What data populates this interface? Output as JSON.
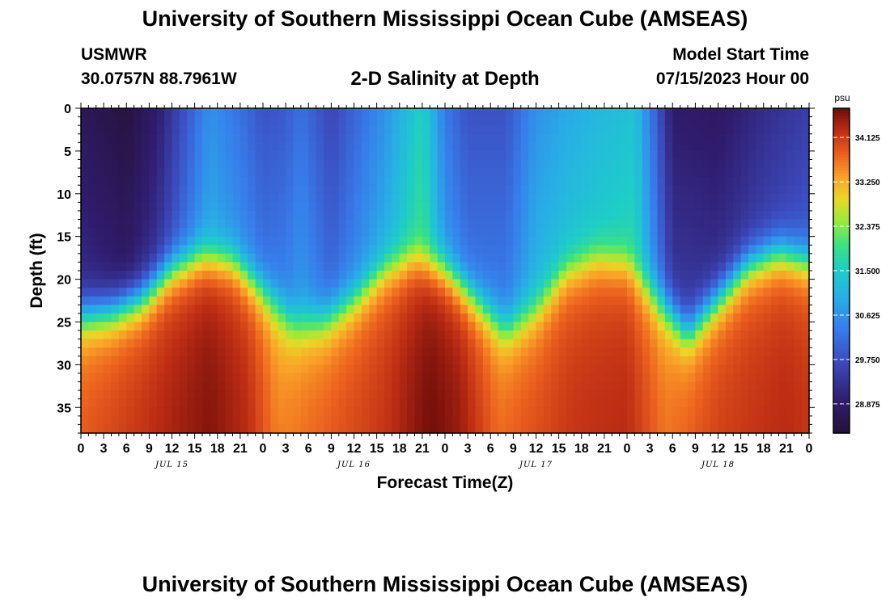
{
  "header": {
    "title": "University of Southern Mississippi Ocean Cube (AMSEAS)",
    "station": "USMWR",
    "coords": "30.0757N  88.7961W",
    "plot_title": "2-D Salinity at Depth",
    "model_start_label": "Model Start Time",
    "model_start_value": "07/15/2023 Hour 00"
  },
  "footer": {
    "title": "University of Southern Mississippi Ocean Cube (AMSEAS)"
  },
  "chart_data": {
    "type": "heatmap",
    "title": "2-D Salinity at Depth",
    "xlabel": "Forecast Time(Z)",
    "ylabel": "Depth (ft)",
    "x_range_hours": [
      0,
      96
    ],
    "y_range_ft": [
      0,
      38
    ],
    "y_inverted": true,
    "x_tick_labels": [
      "0",
      "3",
      "6",
      "9",
      "12",
      "15",
      "18",
      "21",
      "0",
      "3",
      "6",
      "9",
      "12",
      "15",
      "18",
      "21",
      "0",
      "3",
      "6",
      "9",
      "12",
      "15",
      "18",
      "21",
      "0",
      "3",
      "6",
      "9",
      "12",
      "15",
      "18",
      "21",
      "0"
    ],
    "y_tick_labels": [
      "0",
      "5",
      "10",
      "15",
      "20",
      "25",
      "30",
      "35"
    ],
    "date_labels": [
      "JUL 15",
      "JUL 16",
      "JUL 17",
      "JUL 18"
    ],
    "colorbar": {
      "unit": "psu",
      "ticks": [
        "34.125",
        "33.250",
        "32.375",
        "31.500",
        "30.625",
        "29.750",
        "28.875"
      ],
      "range": [
        28.3,
        34.7
      ]
    },
    "salinity_model": {
      "comment": "approximate salinity field read from the plot",
      "surface_profile_hours": [
        0,
        6,
        10,
        17,
        21,
        24,
        27,
        29,
        33,
        40,
        45,
        48,
        51,
        56,
        60,
        64,
        68,
        73,
        78,
        84,
        90,
        96
      ],
      "surface_profile_psu": [
        28.7,
        28.4,
        28.9,
        30.6,
        30.2,
        29.8,
        29.9,
        30.2,
        29.6,
        30.6,
        31.6,
        30.3,
        29.8,
        29.8,
        30.6,
        30.9,
        31.1,
        31.3,
        28.9,
        28.8,
        29.2,
        29.5
      ],
      "halocline_hours": [
        0,
        4,
        8,
        12,
        16,
        20,
        24,
        28,
        32,
        36,
        40,
        44,
        48,
        52,
        56,
        60,
        64,
        68,
        72,
        76,
        80,
        84,
        88,
        92,
        96
      ],
      "halocline_depth_ft": [
        24,
        23.5,
        22,
        18.5,
        17,
        17.5,
        21,
        25,
        24.5,
        22,
        18.5,
        17,
        18.5,
        22,
        25.5,
        23,
        18.5,
        17,
        17.5,
        22,
        26,
        22,
        18,
        16.5,
        17.5
      ],
      "deep_salinity_hours": [
        0,
        17,
        22,
        26,
        35,
        40,
        46,
        50,
        55,
        65,
        72,
        77,
        84,
        93,
        96
      ],
      "deep_salinity_psu": [
        33.9,
        34.6,
        34.3,
        33.6,
        34.0,
        34.2,
        34.7,
        34.5,
        33.8,
        34.2,
        34.3,
        33.7,
        34.1,
        34.3,
        34.2
      ]
    }
  }
}
